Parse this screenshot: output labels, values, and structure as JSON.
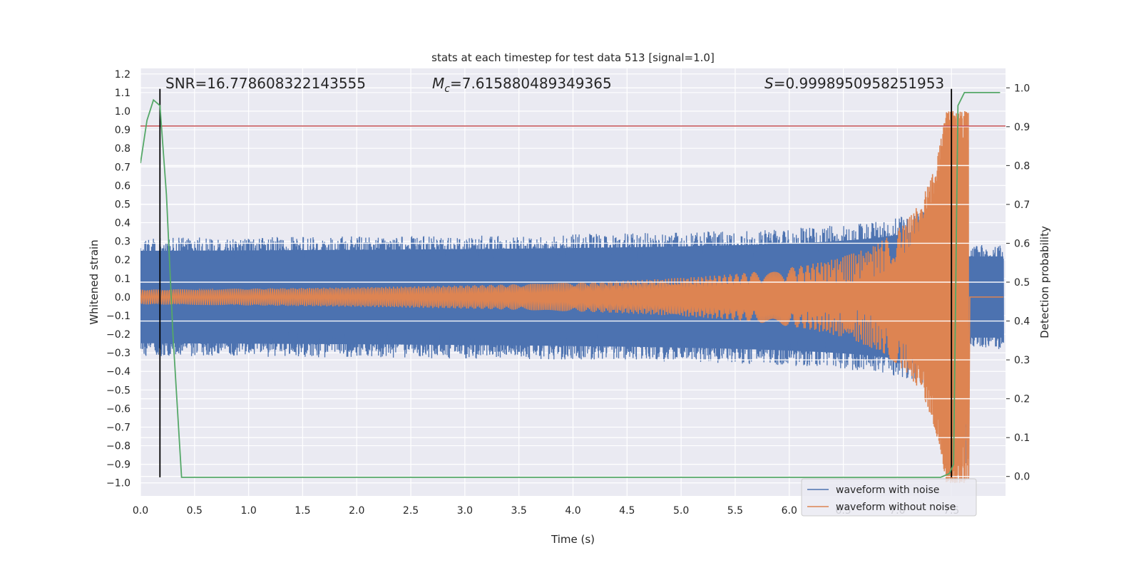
{
  "chart_data": {
    "type": "line",
    "title": "stats at each timestep for test data 513 [signal=1.0]",
    "xlabel": "Time (s)",
    "ylabel": "Whitened strain",
    "ylabel_right": "Detection probability",
    "xlim": [
      0.0,
      8.0
    ],
    "ylim": [
      -1.07,
      1.23
    ],
    "ylim_right": [
      -0.05,
      1.05
    ],
    "x_ticks": [
      "0.0",
      "0.5",
      "1.0",
      "1.5",
      "2.0",
      "2.5",
      "3.0",
      "3.5",
      "4.0",
      "4.5",
      "5.0",
      "5.5",
      "6.0",
      "6.5",
      "7.0",
      "7.5"
    ],
    "y_ticks": [
      "−1.0",
      "−0.9",
      "−0.8",
      "−0.7",
      "−0.6",
      "−0.5",
      "−0.4",
      "−0.3",
      "−0.2",
      "−0.1",
      "0.0",
      "0.1",
      "0.2",
      "0.3",
      "0.4",
      "0.5",
      "0.6",
      "0.7",
      "0.8",
      "0.9",
      "1.0",
      "1.1",
      "1.2"
    ],
    "y_ticks_right": [
      "0.0",
      "0.1",
      "0.2",
      "0.3",
      "0.4",
      "0.5",
      "0.6",
      "0.7",
      "0.8",
      "0.9",
      "1.0"
    ],
    "grid": true,
    "legend_placement": "lower right",
    "annotations": {
      "snr": "SNR=16.778608322143555",
      "mc_symbol": "M",
      "mc_sub": "c",
      "mc_value": "=7.615880489349365",
      "s_symbol": "S",
      "s_value": "=0.9998950958251953"
    },
    "series": [
      {
        "name": "waveform with noise",
        "color": "#4c72b0"
      },
      {
        "name": "waveform without noise",
        "color": "#dd8452"
      }
    ],
    "detection_probability": {
      "color": "#55a868",
      "x": [
        0.0,
        0.06,
        0.12,
        0.18,
        0.24,
        0.3,
        0.38,
        0.5,
        7.4,
        7.48,
        7.52,
        7.56,
        7.62,
        7.7,
        7.75,
        7.8,
        7.85,
        7.9,
        7.95
      ],
      "y": [
        0.72,
        0.95,
        1.06,
        1.03,
        0.55,
        -0.2,
        -0.97,
        -0.97,
        -0.97,
        -0.95,
        -0.9,
        1.03,
        1.1,
        1.1,
        1.1,
        1.1,
        1.1,
        1.1,
        1.1
      ]
    },
    "threshold_line": {
      "y": 0.92,
      "color": "#c44e52"
    },
    "vertical_markers": [
      {
        "x": 0.18,
        "y_range": [
          -0.97,
          1.12
        ]
      },
      {
        "x": 7.5,
        "y_range": [
          -0.97,
          1.12
        ]
      }
    ],
    "noise_band": {
      "x_range": [
        0.0,
        7.98
      ],
      "base_amplitude": 0.28,
      "peak_amplitude": 0.93,
      "merger_time": 7.65
    },
    "clean_chirp": {
      "x_range": [
        0.0,
        7.98
      ],
      "start_amplitude": 0.04,
      "peak_amplitude": 1.0,
      "merger_time": 7.66
    }
  }
}
